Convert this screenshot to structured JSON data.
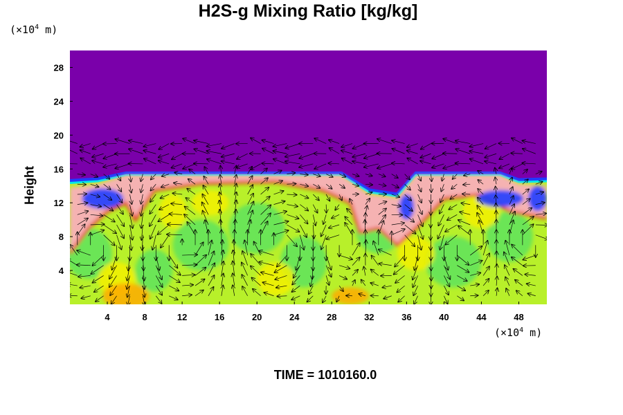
{
  "chart_data": {
    "type": "heatmap",
    "title": "H2S-g Mixing Ratio [kg/kg]",
    "ylabel": "Height",
    "y_unit_prefix": "(×10",
    "y_unit_exp": "4",
    "y_unit_suffix": " m)",
    "x_unit_prefix": "(×10",
    "x_unit_exp": "4",
    "x_unit_suffix": " m)",
    "xlim": [
      0,
      51
    ],
    "ylim": [
      0,
      30
    ],
    "x_ticks": [
      4,
      8,
      12,
      16,
      20,
      24,
      28,
      32,
      36,
      40,
      44,
      48
    ],
    "y_ticks": [
      4,
      8,
      12,
      16,
      20,
      24,
      28
    ],
    "background_color": "#7a00aa",
    "tropopause_height": 15.5,
    "vector_field_top": 20,
    "colors": {
      "upper": "#7a00aa",
      "blue": "#1f3cff",
      "cyan": "#00e8e8",
      "green": "#5ee35e",
      "yellowgreen": "#b8f02a",
      "yellow": "#f4f000",
      "orange": "#ffaa00",
      "red": "#e8281e",
      "pink": "#f5b2b2"
    }
  },
  "footer": {
    "time_label": "TIME = 1010160.0"
  }
}
